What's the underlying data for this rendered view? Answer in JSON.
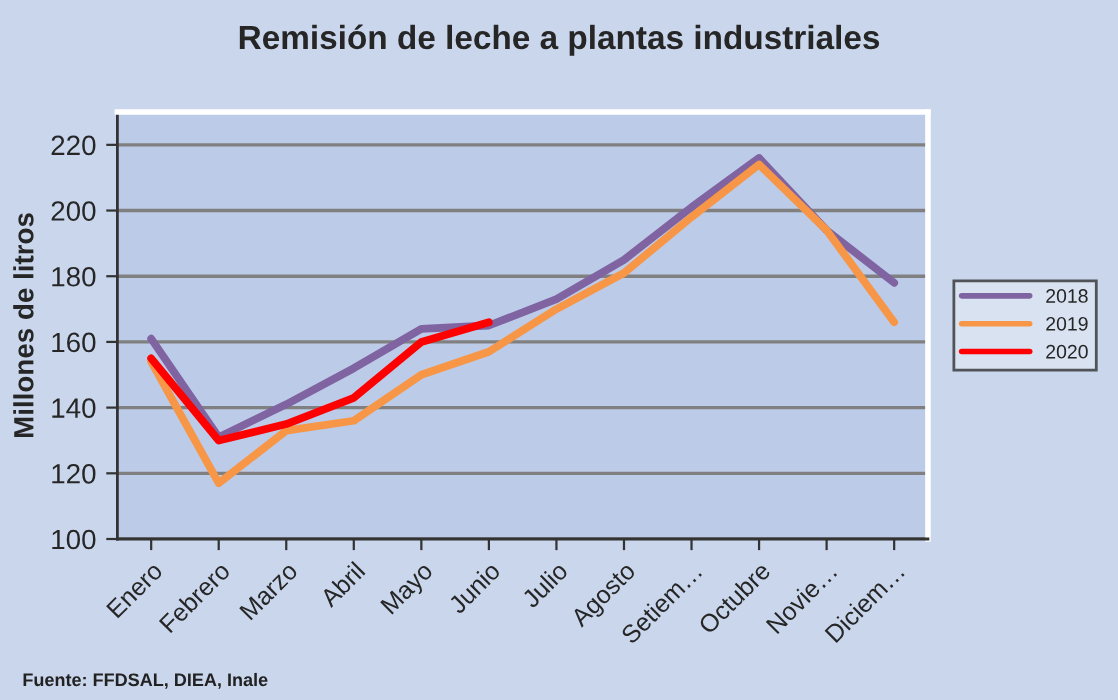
{
  "chart_data": {
    "type": "line",
    "title": "Remisión de leche a plantas industriales",
    "ylabel": "Millones de litros",
    "categories": [
      "Enero",
      "Febrero",
      "Marzo",
      "Abril",
      "Mayo",
      "Junio",
      "Julio",
      "Agosto",
      "Setiem…",
      "Octubre",
      "Novie…",
      "Diciem…"
    ],
    "series": [
      {
        "name": "2018",
        "color": "#8064a2",
        "values": [
          161,
          131,
          141,
          152,
          164,
          165,
          173,
          185,
          201,
          216,
          194,
          178
        ]
      },
      {
        "name": "2019",
        "color": "#f79646",
        "values": [
          154,
          117,
          133,
          136,
          150,
          157,
          170,
          181,
          198,
          214,
          194,
          166
        ]
      },
      {
        "name": "2020",
        "color": "#ff0000",
        "values": [
          155,
          130,
          135,
          143,
          160,
          166,
          null,
          null,
          null,
          null,
          null,
          null
        ]
      }
    ],
    "ylim": [
      100,
      230
    ],
    "yticks": [
      100,
      120,
      140,
      160,
      180,
      200,
      220
    ],
    "grid": "y",
    "legend": "right",
    "annotations": [
      "Fuente: FFDSAL, DIEA, Inale"
    ]
  }
}
